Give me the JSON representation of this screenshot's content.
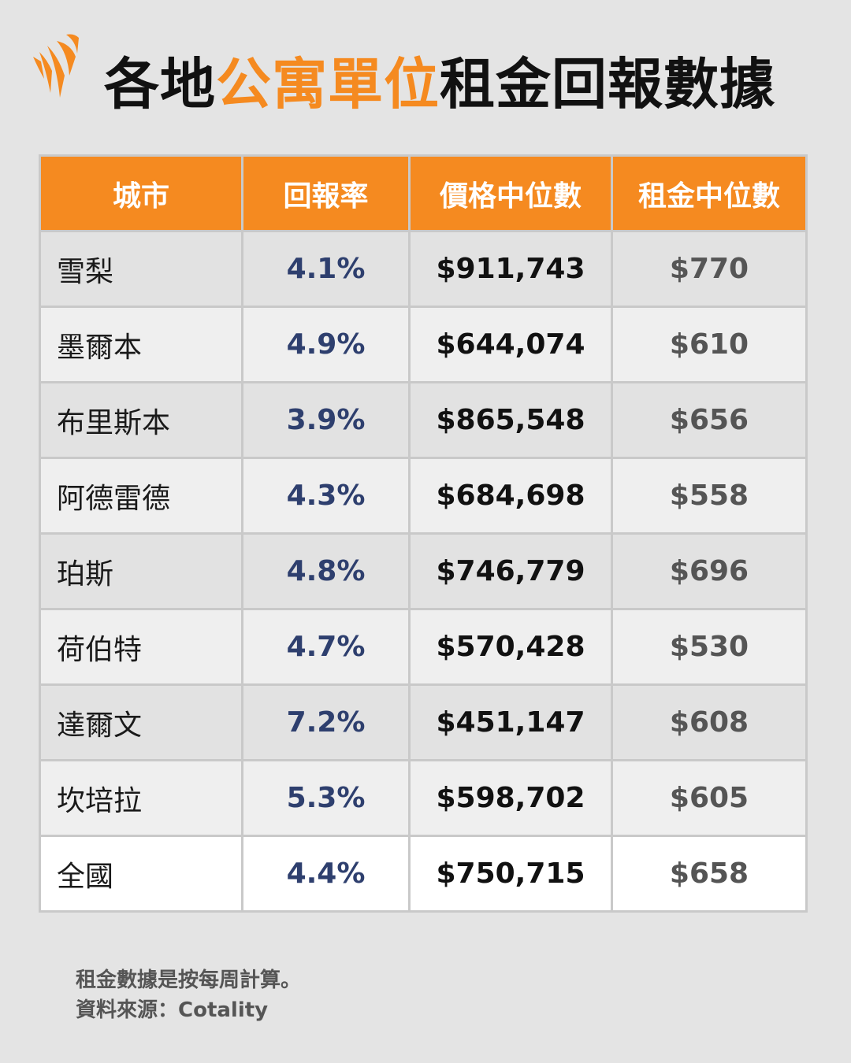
{
  "title": {
    "part1": "各地",
    "accent": "公寓單位",
    "part2": "租金回報數據"
  },
  "colors": {
    "accent": "#f58a20",
    "rate_text": "#2e3f6e",
    "background": "#e4e4e4"
  },
  "logo_icon": "sbs-flame-logo",
  "chart_data": {
    "type": "table",
    "columns": [
      "城市",
      "回報率",
      "價格中位數",
      "租金中位數"
    ],
    "rows": [
      {
        "city": "雪梨",
        "rate": "4.1%",
        "price": "$911,743",
        "rent": "$770"
      },
      {
        "city": "墨爾本",
        "rate": "4.9%",
        "price": "$644,074",
        "rent": "$610"
      },
      {
        "city": "布里斯本",
        "rate": "3.9%",
        "price": "$865,548",
        "rent": "$656"
      },
      {
        "city": "阿德雷德",
        "rate": "4.3%",
        "price": "$684,698",
        "rent": "$558"
      },
      {
        "city": "珀斯",
        "rate": "4.8%",
        "price": "$746,779",
        "rent": "$696"
      },
      {
        "city": "荷伯特",
        "rate": "4.7%",
        "price": "$570,428",
        "rent": "$530"
      },
      {
        "city": "達爾文",
        "rate": "7.2%",
        "price": "$451,147",
        "rent": "$608"
      },
      {
        "city": "坎培拉",
        "rate": "5.3%",
        "price": "$598,702",
        "rent": "$605"
      },
      {
        "city": "全國",
        "rate": "4.4%",
        "price": "$750,715",
        "rent": "$658"
      }
    ]
  },
  "footnote": {
    "line1": "租金數據是按每周計算。",
    "line2": "資料來源：Cotality"
  }
}
